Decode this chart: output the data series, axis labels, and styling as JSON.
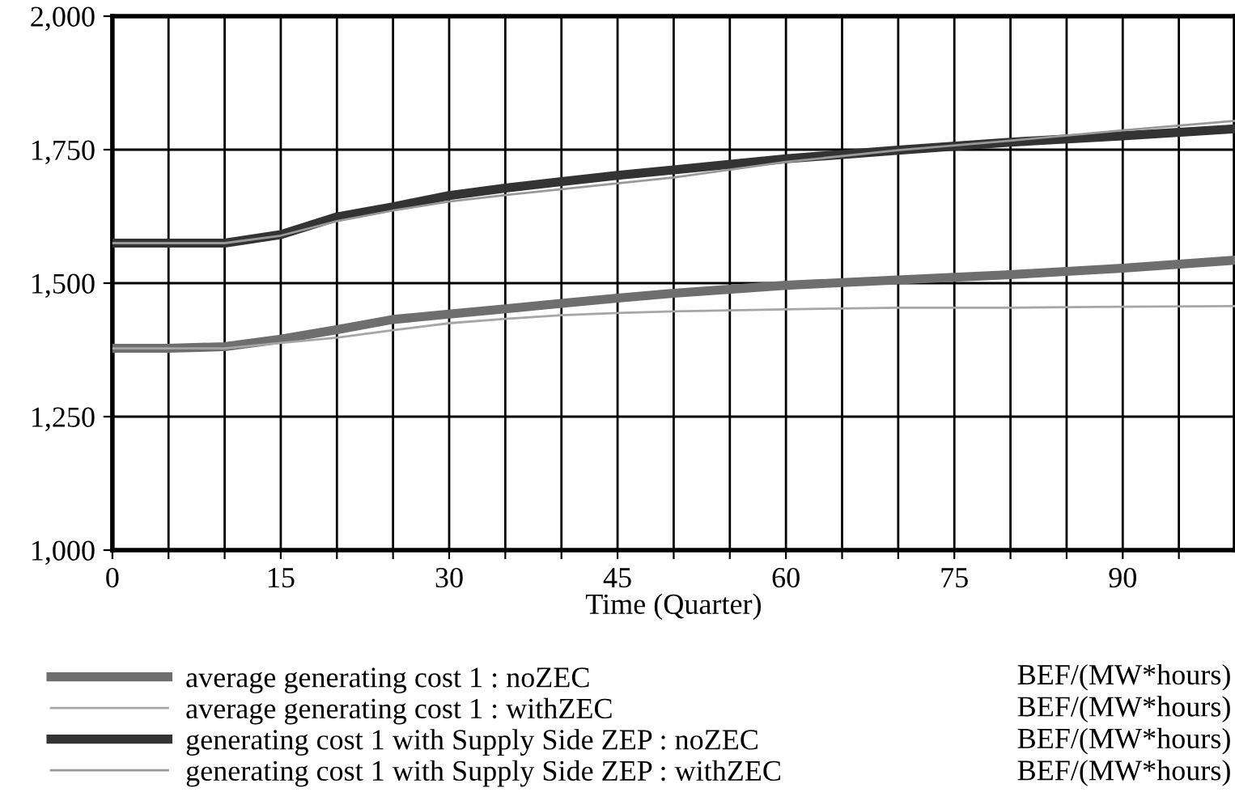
{
  "chart_data": {
    "type": "line",
    "xlabel": "Time (Quarter)",
    "x": [
      0,
      5,
      10,
      15,
      20,
      25,
      30,
      35,
      40,
      45,
      50,
      60,
      70,
      80,
      90,
      100
    ],
    "series": [
      {
        "name": "average generating cost 1 : noZEC",
        "color": "#6e6e6e",
        "values": [
          1378,
          1378,
          1381,
          1395,
          1413,
          1432,
          1442,
          1452,
          1462,
          1472,
          1481,
          1496,
          1506,
          1516,
          1528,
          1543
        ]
      },
      {
        "name": "average generating cost 1 : withZEC",
        "color": "#a6a6a6",
        "values": [
          1378,
          1378,
          1378,
          1388,
          1398,
          1412,
          1425,
          1433,
          1440,
          1444,
          1447,
          1451,
          1454,
          1454,
          1456,
          1457
        ]
      },
      {
        "name": "generating cost 1 with Supply Side ZEP : noZEC",
        "color": "#333333",
        "values": [
          1575,
          1575,
          1575,
          1591,
          1624,
          1643,
          1664,
          1678,
          1690,
          1702,
          1712,
          1733,
          1749,
          1764,
          1776,
          1789
        ]
      },
      {
        "name": "generating cost 1 with Supply Side ZEP : withZEC",
        "color": "#999999",
        "values": [
          1575,
          1575,
          1575,
          1589,
          1616,
          1636,
          1653,
          1665,
          1676,
          1687,
          1698,
          1727,
          1749,
          1767,
          1786,
          1804
        ]
      }
    ],
    "annotations": [
      "BEF/(MW*hours)",
      "BEF/(MW*hours)",
      "BEF/(MW*hours)",
      "BEF/(MW*hours)"
    ],
    "xlim": [
      0,
      100
    ],
    "xticks": [
      0,
      {
        "value": 5,
        "label": null
      },
      {
        "value": 10,
        "label": null
      },
      15,
      {
        "value": 20,
        "label": null
      },
      {
        "value": 25,
        "label": null
      },
      30,
      {
        "value": 35,
        "label": null
      },
      {
        "value": 40,
        "label": null
      },
      45,
      {
        "value": 50,
        "label": null
      },
      {
        "value": 55,
        "label": null
      },
      60,
      {
        "value": 65,
        "label": null
      },
      {
        "value": 70,
        "label": null
      },
      75,
      {
        "value": 80,
        "label": null
      },
      {
        "value": 85,
        "label": null
      },
      90,
      {
        "value": 95,
        "label": null
      }
    ],
    "ylim": [
      1000,
      2000
    ],
    "yticks": [
      {
        "value": 1000,
        "label": "1,000"
      },
      {
        "value": 1250,
        "label": "1,250"
      },
      {
        "value": 1500,
        "label": "1,500"
      },
      {
        "value": 1750,
        "label": "1,750"
      },
      {
        "value": 2000,
        "label": "2,000"
      }
    ],
    "grid": true,
    "legend": "bottom"
  }
}
